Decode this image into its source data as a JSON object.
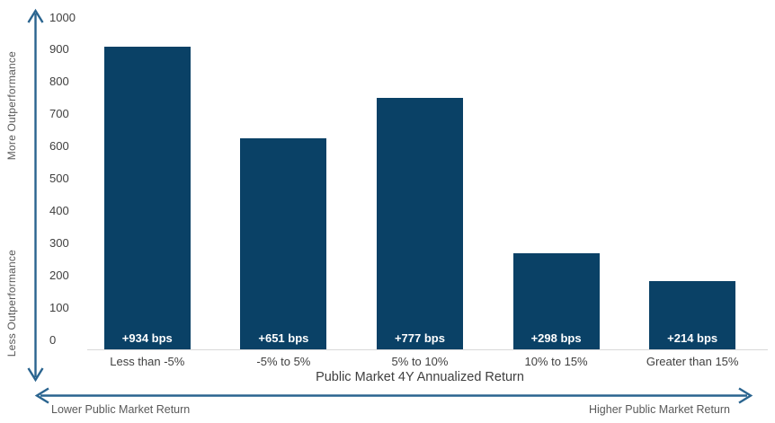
{
  "colors": {
    "bar": "#0a4166",
    "arrow": "#2a648f",
    "axisline": "#d9d9d9",
    "ticktext": "#404040",
    "graytext": "#595959",
    "barlabel": "#ffffff"
  },
  "chart_data": {
    "type": "bar",
    "title": "",
    "categories": [
      "Less than -5%",
      "-5% to 5%",
      "5% to 10%",
      "10% to 15%",
      "Greater than 15%"
    ],
    "values": [
      934,
      651,
      777,
      298,
      214
    ],
    "bar_labels": [
      "+934 bps",
      "+651 bps",
      "+777 bps",
      "+298 bps",
      "+214 bps"
    ],
    "xlabel": "Public Market 4Y Annualized Return",
    "ylabel_top": "More Outperformance",
    "ylabel_bottom": "Less Outperformance",
    "x_annotation_left": "Lower Public Market Return",
    "x_annotation_right": "Higher Public Market Return",
    "ylim": [
      0,
      1000
    ],
    "yticks": [
      0,
      100,
      200,
      300,
      400,
      500,
      600,
      700,
      800,
      900,
      1000
    ],
    "grid": false,
    "legend": "none",
    "bar_color_hex": "#0a4166",
    "value_label_position": "inside-bottom"
  }
}
